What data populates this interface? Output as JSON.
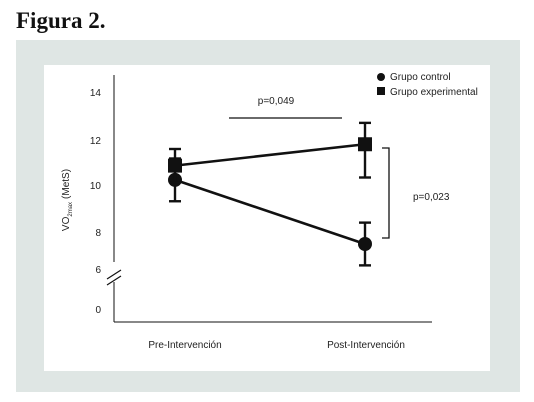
{
  "figure_title": "Figura 2.",
  "chart_data": {
    "type": "line",
    "categories": [
      "Pre-Intervención",
      "Post-Intervención"
    ],
    "ylabel": "VO2max (MetS)",
    "ylabel_main": "VO",
    "ylabel_sub": "2max",
    "ylabel_unit": "(MetS)",
    "y_ticks": [
      "14",
      "12",
      "10",
      "8",
      "6",
      "0"
    ],
    "axis_break": true,
    "series": [
      {
        "name": "Grupo control",
        "marker": "circle",
        "values": [
          10.3,
          7.6
        ],
        "error": [
          [
            0.9,
            0.9
          ],
          [
            0.9,
            0.9
          ]
        ]
      },
      {
        "name": "Grupo experimental",
        "marker": "square",
        "values": [
          10.9,
          11.8
        ],
        "error": [
          [
            0.7,
            0.7
          ],
          [
            1.4,
            0.9
          ]
        ]
      }
    ],
    "annotations": [
      {
        "text": "p=0,049",
        "type": "between-groups-pre-post"
      },
      {
        "text": "p=0,023",
        "type": "bracket-post"
      }
    ],
    "legend_position": "top-right",
    "grid": false,
    "colors": {
      "line": "#111111",
      "frame": "#dfe6e4",
      "panel": "#ffffff"
    }
  }
}
